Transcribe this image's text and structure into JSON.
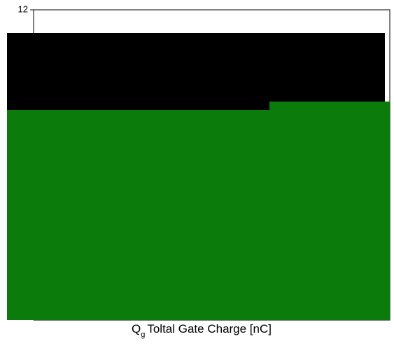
{
  "chart_data": {
    "type": "line",
    "x_label": {
      "symbol": "Q",
      "subscript": "g",
      "text": "Toltal Gate Charge [nC]"
    },
    "ylim": [
      0,
      12
    ],
    "yticks": [
      12
    ],
    "grid": true
  }
}
